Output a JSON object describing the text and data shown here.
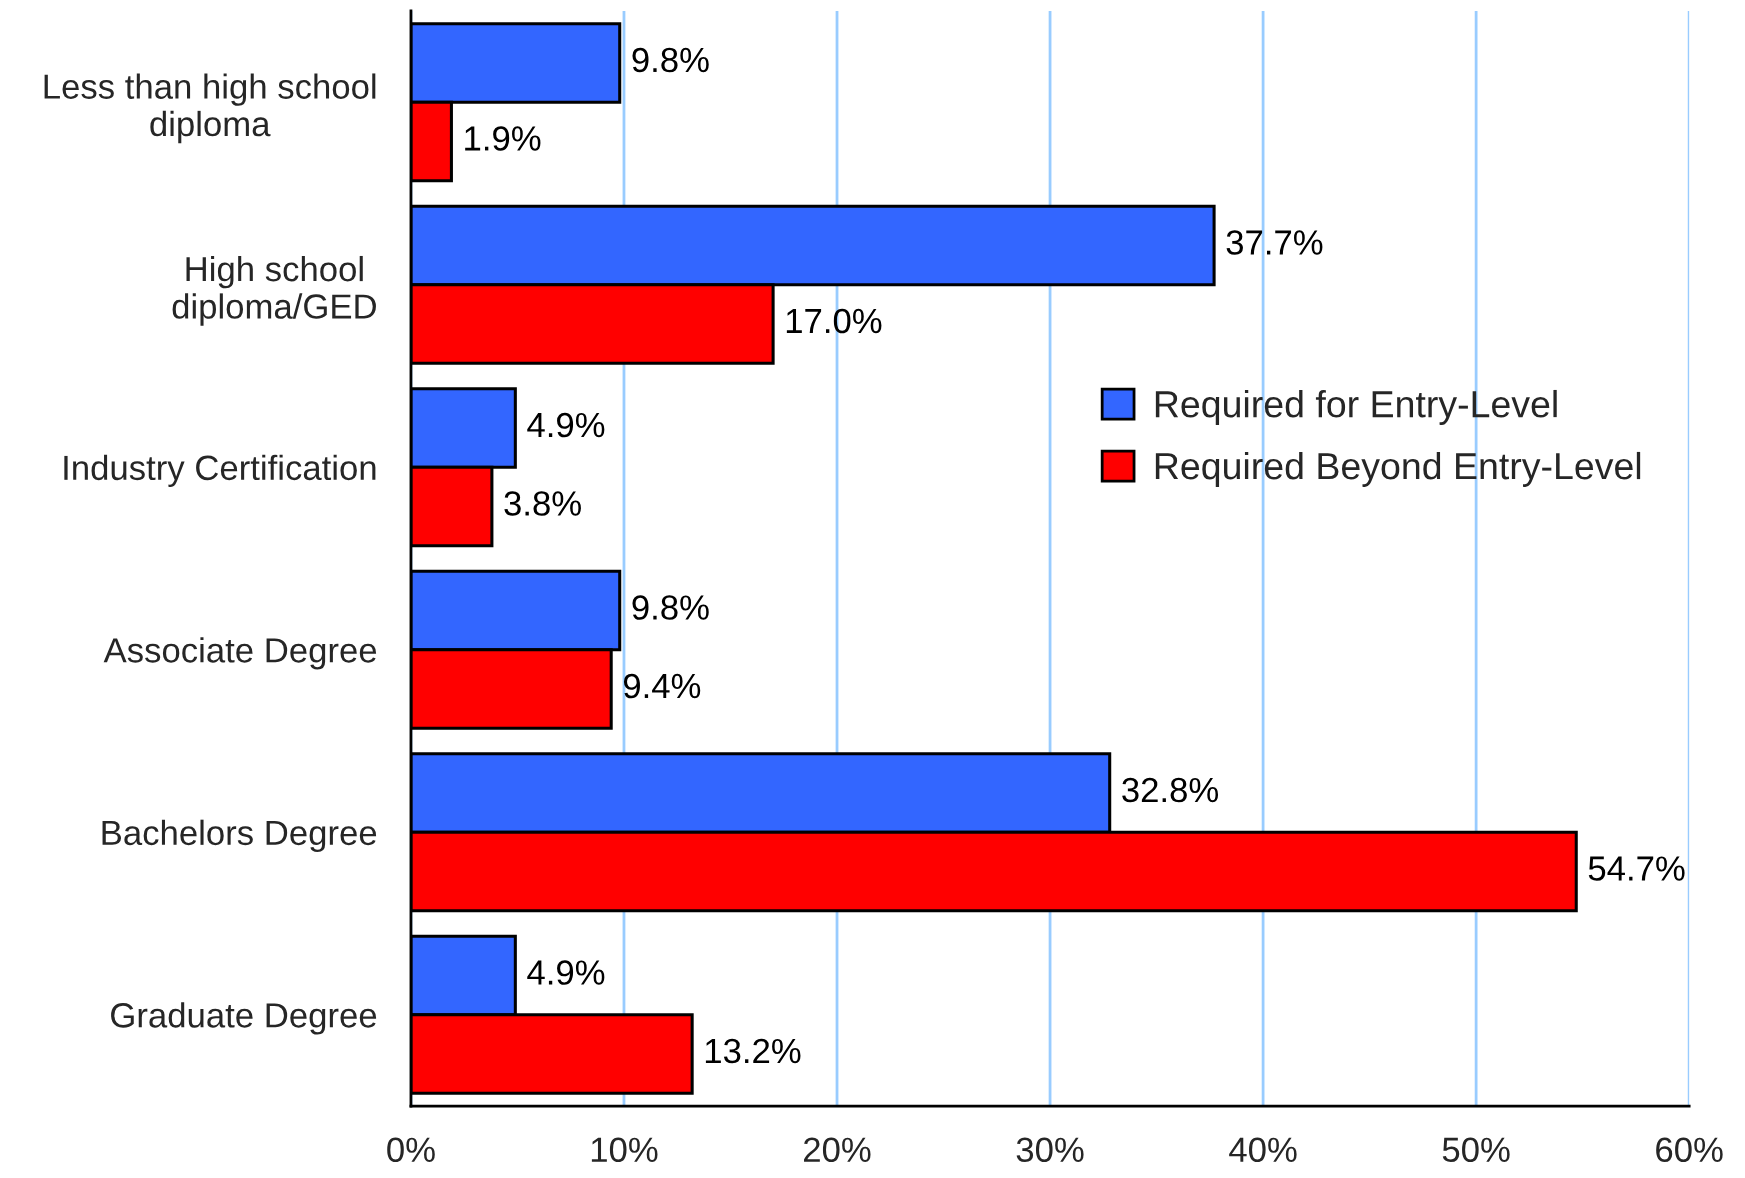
{
  "chart_data": {
    "type": "bar",
    "orientation": "horizontal",
    "categories": [
      "Less than high school\ndiploma",
      "High school\ndiploma/GED",
      "Industry Certification",
      "Associate Degree",
      "Bachelors Degree",
      "Graduate Degree"
    ],
    "series": [
      {
        "name": "Required for Entry-Level",
        "color": "#3366ff",
        "values": [
          9.8,
          37.7,
          4.9,
          9.8,
          32.8,
          4.9
        ],
        "value_labels": [
          "9.8%",
          "37.7%",
          "4.9%",
          "9.8%",
          "32.8%",
          "4.9%"
        ]
      },
      {
        "name": "Required Beyond Entry-Level",
        "color": "#ff0000",
        "values": [
          1.9,
          17.0,
          3.8,
          9.4,
          54.7,
          13.2
        ],
        "value_labels": [
          "1.9%",
          "17.0%",
          "3.8%",
          "9.4%",
          "54.7%",
          "13.2%"
        ]
      }
    ],
    "xlim": [
      0,
      60
    ],
    "xticks": [
      {
        "value": 0,
        "label": "0%"
      },
      {
        "value": 10,
        "label": "10%"
      },
      {
        "value": 20,
        "label": "20%"
      },
      {
        "value": 30,
        "label": "30%"
      },
      {
        "value": 40,
        "label": "40%"
      },
      {
        "value": 50,
        "label": "50%"
      },
      {
        "value": 60,
        "label": "60%"
      }
    ],
    "grid": "x",
    "legend": "right"
  }
}
